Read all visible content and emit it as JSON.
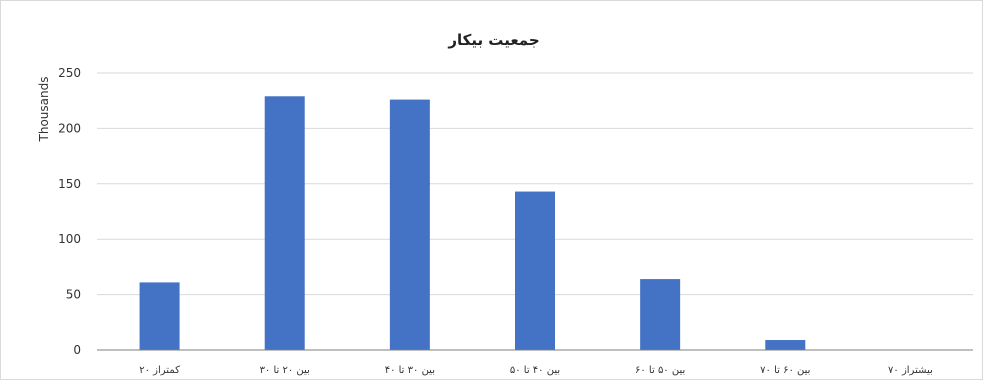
{
  "chart_data": {
    "type": "bar",
    "title": "جمعیت بیکار",
    "xlabel": "",
    "ylabel": "Thousands",
    "categories": [
      "کمتراز ۲۰",
      "بین ۲۰ تا ۳۰",
      "بین ۳۰ تا ۴۰",
      "بین ۴۰ تا ۵۰",
      "بین ۵۰ تا ۶۰",
      "بین ۶۰ تا ۷۰",
      "بیشتراز ۷۰"
    ],
    "values": [
      61,
      229,
      226,
      143,
      64,
      9,
      0
    ],
    "ylim": [
      0,
      250
    ],
    "yticks": [
      0,
      50,
      100,
      150,
      200,
      250
    ],
    "grid": true,
    "legend": "none",
    "colors": {
      "bar": "#4472C4"
    }
  }
}
